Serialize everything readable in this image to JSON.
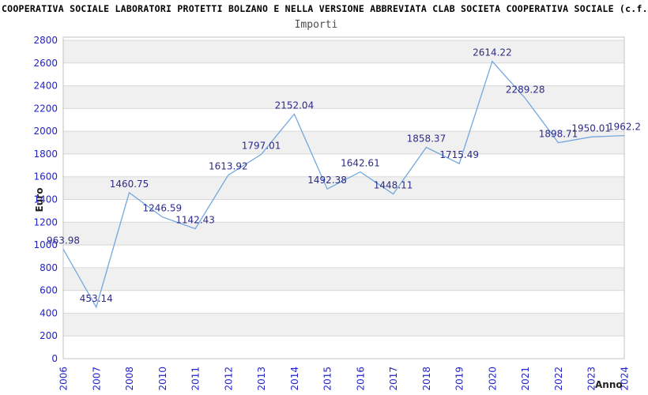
{
  "header": {
    "title": "COOPERATIVA SOCIALE LABORATORI PROTETTI BOLZANO E NELLA VERSIONE ABBREVIATA CLAB SOCIETA COOPERATIVA SOCIALE (c.f."
  },
  "chart_data": {
    "type": "line",
    "title": "Importi",
    "xlabel": "Anno",
    "ylabel": "Euro",
    "categories": [
      "2006",
      "2007",
      "2008",
      "2010",
      "2011",
      "2012",
      "2013",
      "2014",
      "2015",
      "2016",
      "2017",
      "2018",
      "2019",
      "2020",
      "2021",
      "2022",
      "2023",
      "2024"
    ],
    "values": [
      963.98,
      453.14,
      1460.75,
      1246.59,
      1142.43,
      1613.92,
      1797.01,
      2152.04,
      1492.38,
      1642.61,
      1448.11,
      1858.37,
      1715.49,
      2614.22,
      2289.28,
      1898.71,
      1950.01,
      1962.2
    ],
    "point_labels": [
      "963.98",
      "453.14",
      "1460.75",
      "1246.59",
      "1142.43",
      "1613.92",
      "1797.01",
      "2152.04",
      "1492.38",
      "1642.61",
      "1448.11",
      "1858.37",
      "1715.49",
      "2614.22",
      "2289.28",
      "1898.71",
      "1950.01",
      "1962.2"
    ],
    "ylim": [
      0,
      2800
    ],
    "ytick_step": 200,
    "grid": true,
    "legend_position": "none",
    "band_fill": "alternating"
  },
  "colors": {
    "line": "#74a7dd",
    "point_label": "#2b2b8a",
    "tick_label": "#2222cc",
    "band_gray": "#f0f0f0",
    "gridline": "#d8d8d8",
    "plot_border": "#c3c3c3",
    "axis_title": "#222222",
    "chart_title": "#4d4d4d",
    "header_text": "#000000",
    "background": "#ffffff"
  }
}
